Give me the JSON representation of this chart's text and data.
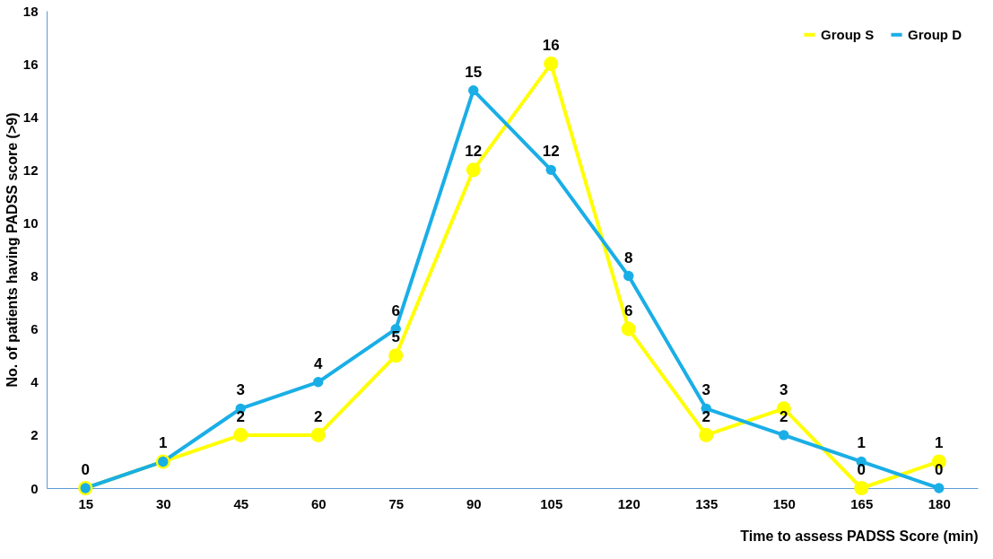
{
  "chart_data": {
    "type": "line",
    "xlabel": "Time to assess PADSS Score (min)",
    "ylabel": "No. of patients having PADSS score (>9)",
    "categories": [
      "15",
      "30",
      "45",
      "60",
      "75",
      "90",
      "105",
      "120",
      "135",
      "150",
      "165",
      "180"
    ],
    "series": [
      {
        "name": "Group S",
        "color": "#ffff00",
        "values": [
          0,
          1,
          2,
          2,
          5,
          12,
          16,
          6,
          2,
          3,
          0,
          1
        ],
        "value_labels": [
          null,
          null,
          "2",
          "2",
          "5",
          "12",
          "16",
          "6",
          "2",
          "3",
          "0",
          "1"
        ]
      },
      {
        "name": "Group D",
        "color": "#1aaee6",
        "values": [
          0,
          1,
          3,
          4,
          6,
          15,
          12,
          8,
          3,
          2,
          1,
          0
        ],
        "value_labels": [
          "0",
          "1",
          "3",
          "4",
          "6",
          "15",
          "12",
          "8",
          "3",
          "2",
          "1",
          "0"
        ]
      }
    ],
    "ylim": [
      0,
      18
    ],
    "yticks": [
      0,
      2,
      4,
      6,
      8,
      10,
      12,
      14,
      16,
      18
    ],
    "grid": false,
    "legend": "top right",
    "marker": "circle",
    "line_style": "solid"
  }
}
